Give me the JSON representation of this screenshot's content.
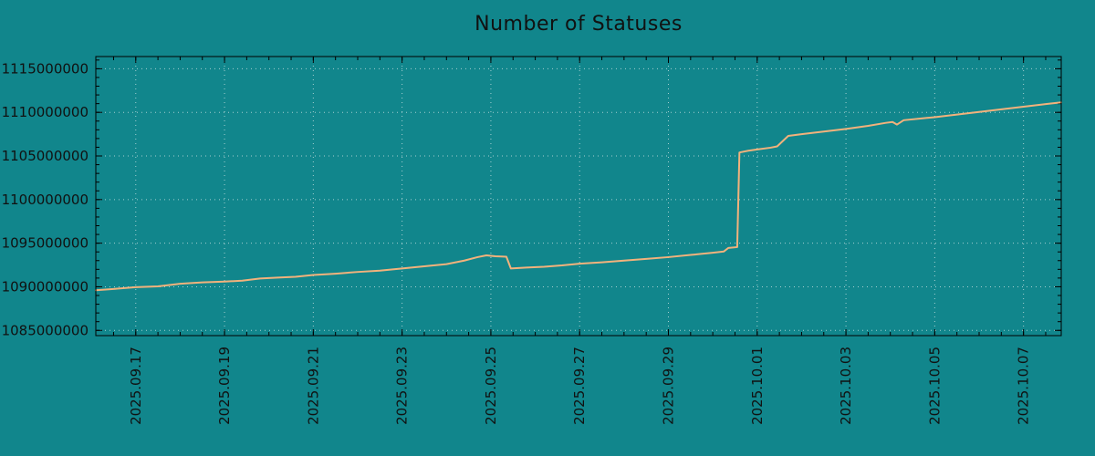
{
  "colors": {
    "background": "#11868c",
    "text": "#111111",
    "axis": "#000000",
    "grid": "#d8e8e8",
    "line": "#f2b27c"
  },
  "chart_data": {
    "type": "line",
    "title": "Number of Statuses",
    "xlabel": "",
    "ylabel": "",
    "x_unit": "days since 2025-09-16",
    "x_range": [
      0.1,
      21.85
    ],
    "y_range": [
      1084400000,
      1116400000
    ],
    "x_minor_step": 0.5,
    "y_minor_step": 1000000,
    "grid": true,
    "legend": "none",
    "x_ticks": [
      {
        "pos": 1,
        "label": "2025.09.17"
      },
      {
        "pos": 3,
        "label": "2025.09.19"
      },
      {
        "pos": 5,
        "label": "2025.09.21"
      },
      {
        "pos": 7,
        "label": "2025.09.23"
      },
      {
        "pos": 9,
        "label": "2025.09.25"
      },
      {
        "pos": 11,
        "label": "2025.09.27"
      },
      {
        "pos": 13,
        "label": "2025.09.29"
      },
      {
        "pos": 15,
        "label": "2025.10.01"
      },
      {
        "pos": 17,
        "label": "2025.10.03"
      },
      {
        "pos": 19,
        "label": "2025.10.05"
      },
      {
        "pos": 21,
        "label": "2025.10.07"
      }
    ],
    "y_ticks": [
      {
        "pos": 1085000000,
        "label": "1085000000"
      },
      {
        "pos": 1090000000,
        "label": "1090000000"
      },
      {
        "pos": 1095000000,
        "label": "1095000000"
      },
      {
        "pos": 1100000000,
        "label": "1100000000"
      },
      {
        "pos": 1105000000,
        "label": "1105000000"
      },
      {
        "pos": 1110000000,
        "label": "1110000000"
      },
      {
        "pos": 1115000000,
        "label": "1115000000"
      }
    ],
    "series": [
      {
        "name": "statuses",
        "color": "#f2b27c",
        "points": [
          [
            0.1,
            1089600000
          ],
          [
            0.5,
            1089750000
          ],
          [
            1.0,
            1089950000
          ],
          [
            1.5,
            1090050000
          ],
          [
            2.0,
            1090350000
          ],
          [
            2.5,
            1090500000
          ],
          [
            3.0,
            1090600000
          ],
          [
            3.4,
            1090700000
          ],
          [
            3.8,
            1090950000
          ],
          [
            4.2,
            1091050000
          ],
          [
            4.6,
            1091150000
          ],
          [
            5.0,
            1091350000
          ],
          [
            5.5,
            1091500000
          ],
          [
            6.0,
            1091700000
          ],
          [
            6.5,
            1091850000
          ],
          [
            7.0,
            1092100000
          ],
          [
            7.5,
            1092350000
          ],
          [
            8.0,
            1092600000
          ],
          [
            8.4,
            1093000000
          ],
          [
            8.7,
            1093400000
          ],
          [
            8.9,
            1093600000
          ],
          [
            9.1,
            1093500000
          ],
          [
            9.35,
            1093450000
          ],
          [
            9.45,
            1092100000
          ],
          [
            9.8,
            1092200000
          ],
          [
            10.2,
            1092300000
          ],
          [
            10.6,
            1092450000
          ],
          [
            11.0,
            1092650000
          ],
          [
            11.5,
            1092800000
          ],
          [
            12.0,
            1093000000
          ],
          [
            12.5,
            1093200000
          ],
          [
            13.0,
            1093400000
          ],
          [
            13.5,
            1093650000
          ],
          [
            14.0,
            1093900000
          ],
          [
            14.25,
            1094050000
          ],
          [
            14.35,
            1094450000
          ],
          [
            14.55,
            1094550000
          ],
          [
            14.6,
            1105400000
          ],
          [
            14.8,
            1105600000
          ],
          [
            15.0,
            1105750000
          ],
          [
            15.3,
            1105950000
          ],
          [
            15.45,
            1106100000
          ],
          [
            15.7,
            1107300000
          ],
          [
            16.0,
            1107500000
          ],
          [
            16.5,
            1107800000
          ],
          [
            17.0,
            1108100000
          ],
          [
            17.5,
            1108450000
          ],
          [
            17.9,
            1108800000
          ],
          [
            18.05,
            1108900000
          ],
          [
            18.15,
            1108600000
          ],
          [
            18.3,
            1109100000
          ],
          [
            18.7,
            1109300000
          ],
          [
            19.0,
            1109450000
          ],
          [
            19.5,
            1109750000
          ],
          [
            20.0,
            1110050000
          ],
          [
            20.5,
            1110350000
          ],
          [
            21.0,
            1110650000
          ],
          [
            21.5,
            1110950000
          ],
          [
            21.85,
            1111150000
          ]
        ]
      }
    ]
  }
}
